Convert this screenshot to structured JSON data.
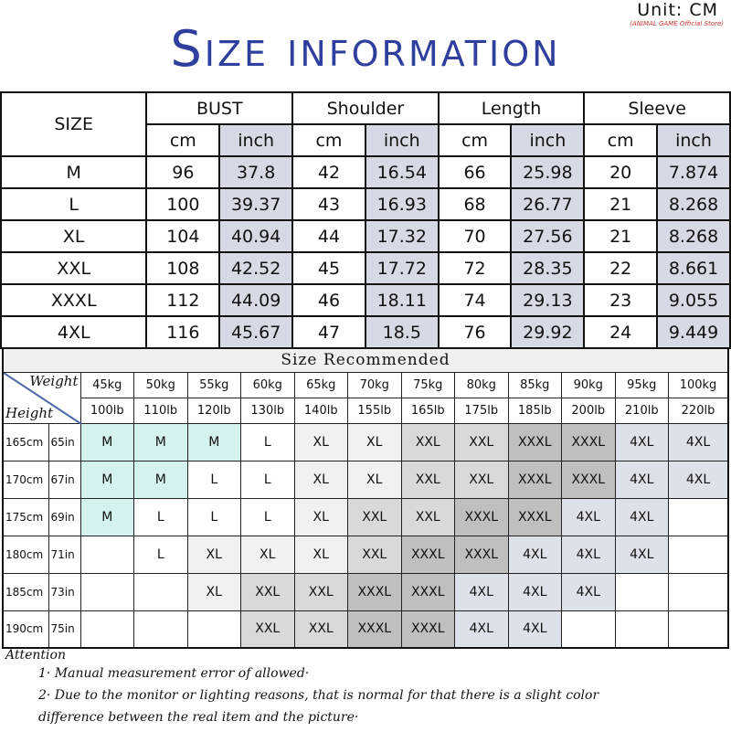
{
  "header": {
    "title": "Size information",
    "unit": "Unit: CM",
    "store": "(ANIMAL GAME Official Store)"
  },
  "size_table": {
    "size_label": "SIZE",
    "groups": [
      "BUST",
      "Shoulder",
      "Length",
      "Sleeve"
    ],
    "units": [
      "cm",
      "inch"
    ],
    "rows": [
      [
        "M",
        "96",
        "37.8",
        "42",
        "16.54",
        "66",
        "25.98",
        "20",
        "7.874"
      ],
      [
        "L",
        "100",
        "39.37",
        "43",
        "16.93",
        "68",
        "26.77",
        "21",
        "8.268"
      ],
      [
        "XL",
        "104",
        "40.94",
        "44",
        "17.32",
        "70",
        "27.56",
        "21",
        "8.268"
      ],
      [
        "XXL",
        "108",
        "42.52",
        "45",
        "17.72",
        "72",
        "28.35",
        "22",
        "8.661"
      ],
      [
        "XXXL",
        "112",
        "44.09",
        "46",
        "18.11",
        "74",
        "29.13",
        "23",
        "9.055"
      ],
      [
        "4XL",
        "116",
        "45.67",
        "47",
        "18.5",
        "76",
        "29.92",
        "24",
        "9.449"
      ]
    ]
  },
  "recommend": {
    "title": "Size Recommended",
    "weight_label": "Weight",
    "height_label": "Height",
    "kg": [
      "45kg",
      "50kg",
      "55kg",
      "60kg",
      "65kg",
      "70kg",
      "75kg",
      "80kg",
      "85kg",
      "90kg",
      "95kg",
      "100kg"
    ],
    "lb": [
      "100lb",
      "110lb",
      "120lb",
      "130lb",
      "140lb",
      "155lb",
      "165lb",
      "175lb",
      "185lb",
      "200lb",
      "210lb",
      "220lb"
    ],
    "rows": [
      {
        "cm": "165cm",
        "in": "65in",
        "sizes": [
          "M",
          "M",
          "M",
          "L",
          "XL",
          "XL",
          "XXL",
          "XXL",
          "XXXL",
          "XXXL",
          "4XL",
          "4XL"
        ]
      },
      {
        "cm": "170cm",
        "in": "67in",
        "sizes": [
          "M",
          "M",
          "L",
          "L",
          "XL",
          "XL",
          "XXL",
          "XXL",
          "XXXL",
          "XXXL",
          "4XL",
          "4XL"
        ]
      },
      {
        "cm": "175cm",
        "in": "69in",
        "sizes": [
          "M",
          "L",
          "L",
          "L",
          "XL",
          "XXL",
          "XXL",
          "XXXL",
          "XXXL",
          "4XL",
          "4XL",
          ""
        ]
      },
      {
        "cm": "180cm",
        "in": "71in",
        "sizes": [
          "",
          "L",
          "XL",
          "XL",
          "XL",
          "XXL",
          "XXXL",
          "XXXL",
          "4XL",
          "4XL",
          "4XL",
          ""
        ]
      },
      {
        "cm": "185cm",
        "in": "73in",
        "sizes": [
          "",
          "",
          "XL",
          "XXL",
          "XXL",
          "XXXL",
          "XXXL",
          "4XL",
          "4XL",
          "4XL",
          "",
          ""
        ]
      },
      {
        "cm": "190cm",
        "in": "75in",
        "sizes": [
          "",
          "",
          "",
          "XXL",
          "XXL",
          "XXXL",
          "XXXL",
          "4XL",
          "4XL",
          "",
          "",
          ""
        ]
      }
    ],
    "colors": {
      "M": "#d4f2f0",
      "XL": "#f1f1f1",
      "XXL": "#d9d9d9",
      "XXXL": "#bfbfbf",
      "4XL": "#dde2ea"
    }
  },
  "notes": {
    "heading": "Attention",
    "items": [
      "1· Manual measurement error of allowed·",
      "2·  Due to the monitor or lighting reasons, that is normal for that there is a slight color",
      "difference between the real item and the picture·"
    ]
  }
}
